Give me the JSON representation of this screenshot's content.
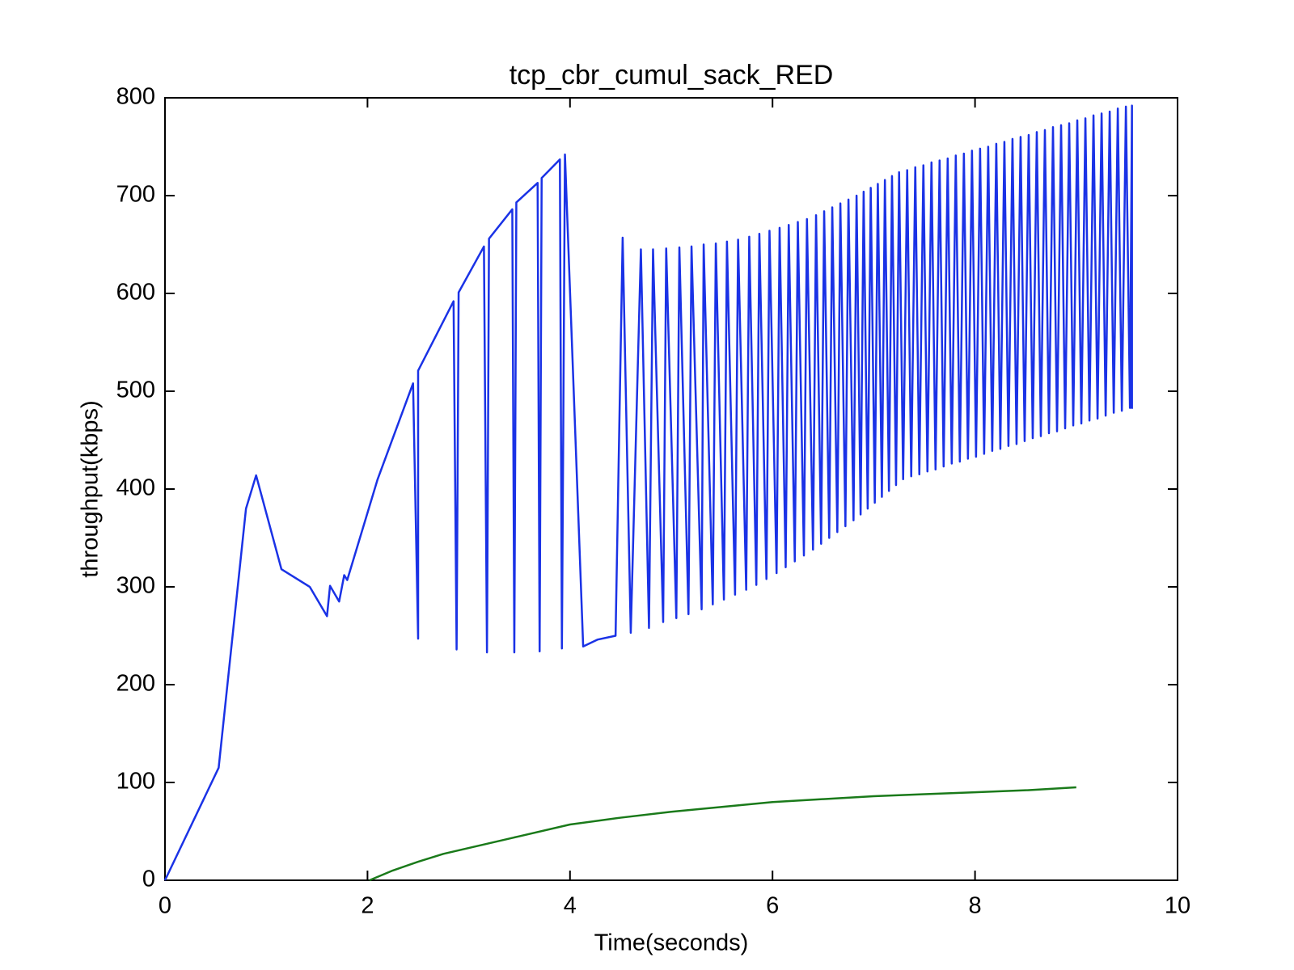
{
  "chart_data": {
    "type": "line",
    "title": "tcp_cbr_cumul_sack_RED",
    "x_label": "Time(seconds)",
    "y_label": "throughput(kbps)",
    "xlim": [
      0,
      10
    ],
    "xticks": [
      0,
      2,
      4,
      6,
      8,
      10
    ],
    "ylim": [
      0,
      800
    ],
    "yticks": [
      0,
      100,
      200,
      300,
      400,
      500,
      600,
      700,
      800
    ],
    "grid": false,
    "series": [
      {
        "color": "#1a32e6",
        "x": [
          0,
          0.53,
          0.8,
          0.9,
          1.15,
          1.43,
          1.6,
          1.63,
          1.72,
          1.77,
          1.8,
          2.1,
          2.45,
          2.5,
          2.5,
          2.85,
          2.88,
          2.9,
          3.15,
          3.18,
          3.2,
          3.43,
          3.45,
          3.47,
          3.68,
          3.7,
          3.72,
          3.9,
          3.92,
          3.95,
          4.13,
          4.27,
          4.45,
          4.52,
          4.6,
          4.7,
          4.78,
          4.82,
          4.92,
          4.95,
          5.05,
          5.08,
          5.17,
          5.2,
          5.3,
          5.32,
          5.41,
          5.44,
          5.52,
          5.55,
          5.63,
          5.66,
          5.74,
          5.77,
          5.84,
          5.87,
          5.94,
          5.97,
          6.04,
          6.07,
          6.13,
          6.16,
          6.22,
          6.25,
          6.31,
          6.34,
          6.4,
          6.43,
          6.48,
          6.51,
          6.56,
          6.59,
          6.64,
          6.67,
          6.72,
          6.75,
          6.8,
          6.83,
          6.87,
          6.9,
          6.94,
          6.97,
          7.01,
          7.04,
          7.08,
          7.11,
          7.15,
          7.18,
          7.22,
          7.25,
          7.29,
          7.33,
          7.37,
          7.41,
          7.45,
          7.49,
          7.53,
          7.57,
          7.61,
          7.65,
          7.69,
          7.73,
          7.77,
          7.81,
          7.85,
          7.89,
          7.93,
          7.97,
          8.01,
          8.05,
          8.09,
          8.13,
          8.17,
          8.21,
          8.25,
          8.29,
          8.33,
          8.37,
          8.41,
          8.45,
          8.49,
          8.53,
          8.57,
          8.61,
          8.65,
          8.69,
          8.73,
          8.77,
          8.81,
          8.85,
          8.89,
          8.93,
          8.97,
          9.01,
          9.05,
          9.09,
          9.13,
          9.17,
          9.21,
          9.25,
          9.29,
          9.33,
          9.37,
          9.41,
          9.45,
          9.49,
          9.53,
          9.55,
          9.55
        ],
        "values": [
          0,
          115,
          380,
          414,
          318,
          300,
          270,
          301,
          285,
          312,
          307,
          410,
          508,
          247,
          521,
          592,
          236,
          601,
          648,
          233,
          656,
          686,
          233,
          693,
          713,
          234,
          718,
          737,
          237,
          742,
          239,
          246,
          250,
          657,
          253,
          645,
          258,
          645,
          264,
          646,
          268,
          647,
          272,
          648,
          277,
          650,
          282,
          651,
          287,
          653,
          292,
          655,
          297,
          658,
          302,
          661,
          308,
          664,
          314,
          667,
          320,
          670,
          326,
          673,
          332,
          676,
          338,
          680,
          344,
          684,
          350,
          688,
          356,
          692,
          362,
          696,
          368,
          700,
          374,
          704,
          380,
          708,
          386,
          712,
          392,
          716,
          398,
          720,
          404,
          724,
          410,
          726,
          413,
          729,
          415,
          731,
          418,
          734,
          420,
          736,
          423,
          738,
          426,
          741,
          428,
          743,
          431,
          746,
          433,
          748,
          436,
          750,
          439,
          753,
          441,
          755,
          444,
          758,
          446,
          760,
          449,
          762,
          452,
          765,
          454,
          767,
          457,
          770,
          459,
          772,
          462,
          774,
          465,
          777,
          467,
          779,
          470,
          782,
          472,
          784,
          475,
          786,
          478,
          789,
          480,
          791,
          483,
          792,
          482
        ]
      },
      {
        "color": "#1a7a1a",
        "x": [
          2.02,
          2.25,
          2.5,
          2.75,
          3,
          3.5,
          4,
          4.5,
          5,
          5.5,
          6,
          6.5,
          7,
          7.5,
          8,
          8.5,
          9
        ],
        "values": [
          0,
          10,
          19,
          27,
          33,
          45,
          57,
          64,
          70,
          75,
          80,
          83,
          86,
          88,
          90,
          92,
          95
        ]
      }
    ]
  }
}
